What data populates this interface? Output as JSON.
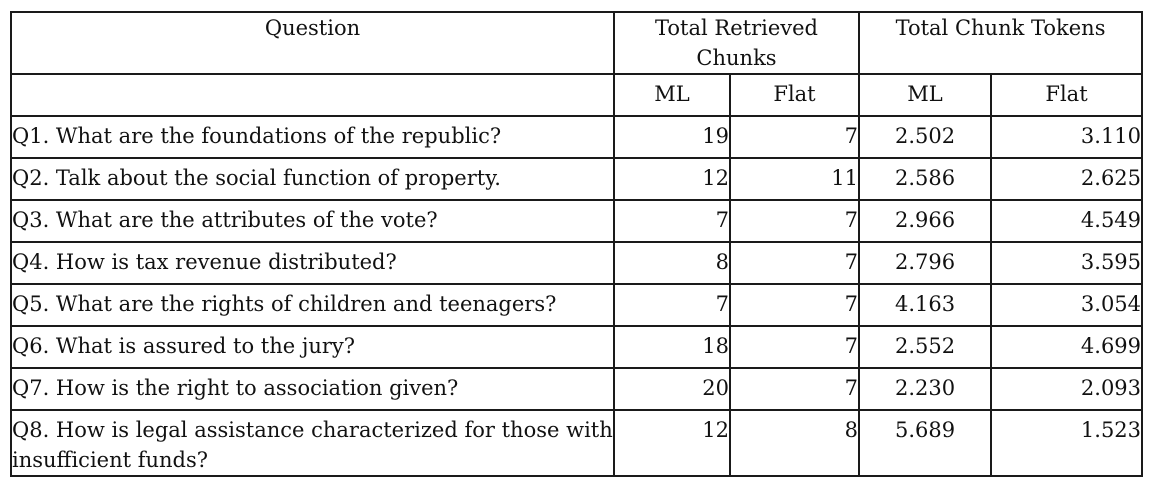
{
  "header": {
    "question": "Question",
    "total_retrieved_chunks": "Total Retrieved Chunks",
    "total_chunk_tokens": "Total Chunk Tokens"
  },
  "subheader": {
    "retrieved_ml": "ML",
    "retrieved_flat": "Flat",
    "tokens_ml": "ML",
    "tokens_flat": "Flat"
  },
  "rows": [
    {
      "question": "Q1. What are the foundations of the republic?",
      "retrieved_ml": "19",
      "retrieved_flat": "7",
      "tokens_ml": "2.502",
      "tokens_flat": "3.110"
    },
    {
      "question": "Q2. Talk about the social function of property.",
      "retrieved_ml": "12",
      "retrieved_flat": "11",
      "tokens_ml": "2.586",
      "tokens_flat": "2.625"
    },
    {
      "question": "Q3. What are the attributes of the vote?",
      "retrieved_ml": "7",
      "retrieved_flat": "7",
      "tokens_ml": "2.966",
      "tokens_flat": "4.549"
    },
    {
      "question": "Q4. How is tax revenue distributed?",
      "retrieved_ml": "8",
      "retrieved_flat": "7",
      "tokens_ml": "2.796",
      "tokens_flat": "3.595"
    },
    {
      "question": "Q5. What are the rights of children and teenagers?",
      "retrieved_ml": "7",
      "retrieved_flat": "7",
      "tokens_ml": "4.163",
      "tokens_flat": "3.054"
    },
    {
      "question": "Q6. What is assured to the jury?",
      "retrieved_ml": "18",
      "retrieved_flat": "7",
      "tokens_ml": "2.552",
      "tokens_flat": "4.699"
    },
    {
      "question": "Q7. How is the right to association given?",
      "retrieved_ml": "20",
      "retrieved_flat": "7",
      "tokens_ml": "2.230",
      "tokens_flat": "2.093"
    },
    {
      "question": "Q8. How is legal assistance characterized for those with insufficient funds?",
      "retrieved_ml": "12",
      "retrieved_flat": "8",
      "tokens_ml": "5.689",
      "tokens_flat": "1.523"
    }
  ]
}
